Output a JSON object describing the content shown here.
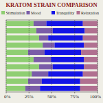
{
  "chart_data": {
    "type": "bar",
    "orientation": "horizontal",
    "stacked": true,
    "title": "KRATOM STRAIN COMPARISON",
    "categories": [
      null,
      null,
      null,
      null,
      null,
      null,
      null,
      null,
      null,
      null
    ],
    "series": [
      {
        "name": "Stimulation",
        "color": "#8fce72",
        "values": [
          30,
          33,
          36,
          40,
          24,
          30,
          36,
          28,
          24,
          21
        ]
      },
      {
        "name": "Mood",
        "color": "#7a5ca8",
        "values": [
          14,
          18,
          10,
          13,
          18,
          19,
          15,
          18,
          15,
          16
        ]
      },
      {
        "name": "Tranquility",
        "color": "#1414e6",
        "values": [
          40,
          35,
          38,
          32,
          40,
          36,
          34,
          38,
          42,
          44
        ]
      },
      {
        "name": "Relaxation",
        "color": "#b07090",
        "values": [
          16,
          14,
          16,
          15,
          18,
          15,
          15,
          16,
          19,
          19
        ]
      }
    ],
    "xlim": [
      0,
      100
    ],
    "xticks": [
      {
        "value": 0,
        "label": "0%"
      },
      {
        "value": 25,
        "label": "25%"
      },
      {
        "value": 50,
        "label": "50%"
      },
      {
        "value": 75,
        "label": "75%"
      },
      {
        "value": 100,
        "label": "100%"
      }
    ],
    "grid": true,
    "legend": "top",
    "tick_labels": "x"
  }
}
